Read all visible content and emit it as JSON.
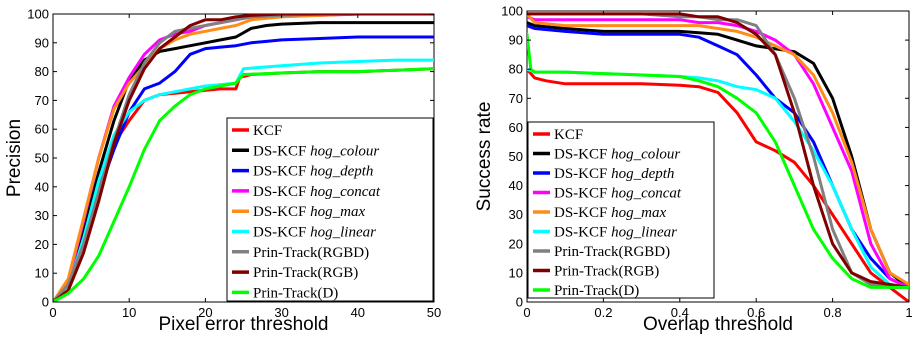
{
  "chart_data": [
    {
      "type": "line",
      "title": "",
      "xlabel": "Pixel error threshold",
      "ylabel": "Precision",
      "xlim": [
        0,
        50
      ],
      "ylim": [
        0,
        100
      ],
      "xticks": [
        "0",
        "10",
        "20",
        "30",
        "40",
        "50"
      ],
      "yticks": [
        "0",
        "10",
        "20",
        "30",
        "40",
        "50",
        "60",
        "70",
        "80",
        "90",
        "100"
      ],
      "grid": false,
      "legend_position": "bottom-right",
      "series": [
        {
          "name": "KCF",
          "label_main": "KCF",
          "label_italic": "",
          "color": "#ff0000",
          "x": [
            0,
            2,
            4,
            6,
            8,
            10,
            12,
            14,
            16,
            18,
            20,
            22,
            24,
            24.5,
            26,
            30,
            35,
            40,
            45,
            50
          ],
          "y": [
            0,
            5,
            23,
            40,
            55,
            63,
            70,
            72,
            72.5,
            73,
            73.5,
            74,
            74,
            78,
            79,
            79.5,
            80,
            80,
            80.5,
            81
          ]
        },
        {
          "name": "DS-KCF hog_colour",
          "label_main": "DS-KCF ",
          "label_italic": "hog_colour",
          "color": "#000000",
          "x": [
            0,
            2,
            4,
            6,
            8,
            10,
            12,
            14,
            16,
            18,
            20,
            22,
            24,
            26,
            28,
            30,
            35,
            40,
            45,
            50
          ],
          "y": [
            0,
            6,
            25,
            45,
            63,
            77,
            84,
            87,
            88,
            89,
            90,
            91,
            92,
            95,
            96,
            96.5,
            97,
            97,
            97,
            97
          ]
        },
        {
          "name": "DS-KCF hog_depth",
          "label_main": "DS-KCF ",
          "label_italic": "hog_depth",
          "color": "#0000ff",
          "x": [
            0,
            2,
            4,
            6,
            8,
            10,
            12,
            14,
            16,
            18,
            20,
            22,
            24,
            26,
            28,
            30,
            35,
            40,
            45,
            50
          ],
          "y": [
            0,
            5,
            22,
            38,
            53,
            66,
            74,
            76,
            80,
            86,
            88,
            88.5,
            89,
            90,
            90.5,
            91,
            91.5,
            92,
            92,
            92
          ]
        },
        {
          "name": "DS-KCF hog_concat",
          "label_main": "DS-KCF ",
          "label_italic": "hog_concat",
          "color": "#ff00ff",
          "x": [
            0,
            2,
            4,
            6,
            8,
            10,
            12,
            14,
            16,
            18,
            20,
            22,
            24,
            26,
            30,
            35,
            40,
            45,
            50
          ],
          "y": [
            0,
            7,
            28,
            50,
            68,
            78,
            86,
            91,
            93,
            94,
            96,
            97,
            98,
            99,
            99.5,
            99.5,
            100,
            100,
            100
          ]
        },
        {
          "name": "DS-KCF hog_max",
          "label_main": "DS-KCF ",
          "label_italic": "hog_max",
          "color": "#ff8c1a",
          "x": [
            0,
            2,
            4,
            6,
            8,
            10,
            12,
            14,
            16,
            18,
            20,
            22,
            24,
            26,
            30,
            35,
            40,
            45,
            50
          ],
          "y": [
            0,
            8,
            29,
            50,
            67,
            76,
            82,
            88,
            91,
            93,
            94,
            95,
            96,
            98,
            99,
            99.5,
            100,
            100,
            100
          ]
        },
        {
          "name": "DS-KCF hog_linear",
          "label_main": "DS-KCF ",
          "label_italic": "hog_linear",
          "color": "#00ffff",
          "x": [
            0,
            2,
            4,
            6,
            8,
            10,
            12,
            14,
            16,
            18,
            20,
            22,
            24,
            25,
            30,
            35,
            40,
            45,
            50
          ],
          "y": [
            0,
            5,
            22,
            42,
            58,
            66,
            70,
            72,
            73,
            74,
            75,
            75.5,
            76,
            81,
            82,
            83,
            83.5,
            84,
            84
          ]
        },
        {
          "name": "Prin-Track(RGBD)",
          "label_main": "Prin-Track(RGBD)",
          "label_italic": "",
          "color": "#808080",
          "x": [
            0,
            2,
            4,
            6,
            8,
            10,
            12,
            14,
            16,
            18,
            20,
            22,
            24,
            26,
            30,
            35,
            40,
            45,
            50
          ],
          "y": [
            0,
            6,
            20,
            38,
            56,
            72,
            83,
            90,
            94,
            95,
            96,
            97,
            98,
            99,
            99.5,
            100,
            100,
            100,
            100
          ]
        },
        {
          "name": "Prin-Track(RGB)",
          "label_main": "Prin-Track(RGB)",
          "label_italic": "",
          "color": "#800000",
          "x": [
            0,
            2,
            4,
            6,
            8,
            10,
            12,
            14,
            16,
            18,
            20,
            22,
            24,
            26,
            30,
            35,
            40,
            45,
            50
          ],
          "y": [
            0,
            4,
            17,
            35,
            55,
            70,
            81,
            88,
            92,
            96,
            98,
            98,
            99,
            99.5,
            100,
            100,
            100,
            100,
            100
          ]
        },
        {
          "name": "Prin-Track(D)",
          "label_main": "Prin-Track(D)",
          "label_italic": "",
          "color": "#00ff00",
          "x": [
            0,
            2,
            4,
            6,
            8,
            10,
            12,
            14,
            16,
            18,
            20,
            22,
            24,
            25,
            30,
            35,
            40,
            45,
            50
          ],
          "y": [
            0,
            3,
            8,
            16,
            28,
            40,
            53,
            63,
            68,
            72,
            74,
            75,
            76,
            79,
            79.5,
            80,
            80,
            80.5,
            81
          ]
        }
      ]
    },
    {
      "type": "line",
      "title": "",
      "xlabel": "Overlap threshold",
      "ylabel": "Success rate",
      "xlim": [
        0,
        1
      ],
      "ylim": [
        0,
        100
      ],
      "xticks": [
        "0",
        "0.2",
        "0.4",
        "0.6",
        "0.8",
        "1"
      ],
      "yticks": [
        "0",
        "10",
        "20",
        "30",
        "40",
        "50",
        "60",
        "70",
        "80",
        "90",
        "100"
      ],
      "grid": false,
      "legend_position": "bottom-left",
      "series": [
        {
          "name": "KCF",
          "label_main": "KCF",
          "label_italic": "",
          "color": "#ff0000",
          "x": [
            0,
            0.02,
            0.05,
            0.1,
            0.2,
            0.3,
            0.4,
            0.45,
            0.5,
            0.55,
            0.6,
            0.65,
            0.7,
            0.75,
            0.8,
            0.85,
            0.9,
            0.95,
            1
          ],
          "y": [
            80,
            77,
            76,
            75,
            75,
            75,
            74.5,
            74,
            72,
            65,
            55,
            52,
            48,
            40,
            30,
            20,
            10,
            5,
            0
          ]
        },
        {
          "name": "DS-KCF hog_colour",
          "label_main": "DS-KCF ",
          "label_italic": "hog_colour",
          "color": "#000000",
          "x": [
            0,
            0.02,
            0.1,
            0.2,
            0.3,
            0.4,
            0.45,
            0.5,
            0.55,
            0.6,
            0.65,
            0.7,
            0.75,
            0.8,
            0.85,
            0.9,
            0.95,
            1
          ],
          "y": [
            96,
            95,
            94,
            93,
            93,
            93,
            92.5,
            92,
            90,
            88,
            87,
            86,
            82,
            70,
            50,
            25,
            10,
            5
          ]
        },
        {
          "name": "DS-KCF hog_depth",
          "label_main": "DS-KCF ",
          "label_italic": "hog_depth",
          "color": "#0000ff",
          "x": [
            0,
            0.02,
            0.1,
            0.2,
            0.3,
            0.4,
            0.45,
            0.5,
            0.55,
            0.6,
            0.65,
            0.7,
            0.75,
            0.8,
            0.85,
            0.9,
            0.95,
            1
          ],
          "y": [
            95,
            94,
            93,
            92,
            92,
            92,
            91,
            88,
            85,
            78,
            70,
            65,
            55,
            40,
            25,
            15,
            8,
            5
          ]
        },
        {
          "name": "DS-KCF hog_concat",
          "label_main": "DS-KCF ",
          "label_italic": "hog_concat",
          "color": "#ff00ff",
          "x": [
            0,
            0.02,
            0.1,
            0.2,
            0.3,
            0.4,
            0.45,
            0.5,
            0.55,
            0.6,
            0.65,
            0.7,
            0.75,
            0.8,
            0.85,
            0.9,
            0.95,
            1
          ],
          "y": [
            98,
            97,
            97,
            97,
            97,
            97,
            96,
            96,
            95,
            93,
            90,
            85,
            75,
            60,
            45,
            20,
            8,
            5
          ]
        },
        {
          "name": "DS-KCF hog_max",
          "label_main": "DS-KCF ",
          "label_italic": "hog_max",
          "color": "#ff8c1a",
          "x": [
            0,
            0.02,
            0.1,
            0.2,
            0.3,
            0.4,
            0.45,
            0.5,
            0.55,
            0.6,
            0.65,
            0.7,
            0.75,
            0.8,
            0.85,
            0.9,
            0.95,
            1
          ],
          "y": [
            99,
            96,
            95,
            95,
            95,
            95,
            95,
            94,
            93,
            91,
            88,
            85,
            78,
            65,
            48,
            25,
            10,
            6
          ]
        },
        {
          "name": "DS-KCF hog_linear",
          "label_main": "DS-KCF ",
          "label_italic": "hog_linear",
          "color": "#00ffff",
          "x": [
            0,
            0.02,
            0.1,
            0.2,
            0.3,
            0.4,
            0.45,
            0.5,
            0.55,
            0.6,
            0.65,
            0.7,
            0.75,
            0.8,
            0.85,
            0.9,
            0.95,
            1
          ],
          "y": [
            80,
            79,
            79,
            78.5,
            78,
            77.5,
            77,
            76,
            74,
            73,
            70,
            62,
            52,
            40,
            25,
            12,
            6,
            5
          ]
        },
        {
          "name": "Prin-Track(RGBD)",
          "label_main": "Prin-Track(RGBD)",
          "label_italic": "",
          "color": "#808080",
          "x": [
            0,
            0.02,
            0.1,
            0.2,
            0.3,
            0.4,
            0.45,
            0.5,
            0.55,
            0.6,
            0.65,
            0.7,
            0.75,
            0.8,
            0.85,
            0.9,
            0.95,
            1
          ],
          "y": [
            99,
            99,
            99,
            99,
            99,
            98,
            98,
            97,
            97,
            95,
            85,
            70,
            50,
            25,
            10,
            6,
            5,
            5
          ]
        },
        {
          "name": "Prin-Track(RGB)",
          "label_main": "Prin-Track(RGB)",
          "label_italic": "",
          "color": "#800000",
          "x": [
            0,
            0.02,
            0.1,
            0.2,
            0.3,
            0.4,
            0.45,
            0.5,
            0.55,
            0.6,
            0.65,
            0.7,
            0.75,
            0.8,
            0.85,
            0.9,
            0.95,
            1
          ],
          "y": [
            99,
            99,
            99,
            99,
            99,
            99,
            98,
            98,
            96,
            92,
            85,
            65,
            40,
            20,
            10,
            7,
            6,
            5
          ]
        },
        {
          "name": "Prin-Track(D)",
          "label_main": "Prin-Track(D)",
          "label_italic": "",
          "color": "#00ff00",
          "x": [
            0,
            0.01,
            0.02,
            0.1,
            0.2,
            0.3,
            0.4,
            0.45,
            0.5,
            0.55,
            0.6,
            0.65,
            0.7,
            0.75,
            0.8,
            0.85,
            0.9,
            0.95,
            1
          ],
          "y": [
            92,
            80,
            79,
            79,
            78.5,
            78,
            77.5,
            76,
            74,
            70,
            65,
            55,
            40,
            25,
            15,
            8,
            5,
            5,
            5
          ]
        }
      ]
    }
  ]
}
